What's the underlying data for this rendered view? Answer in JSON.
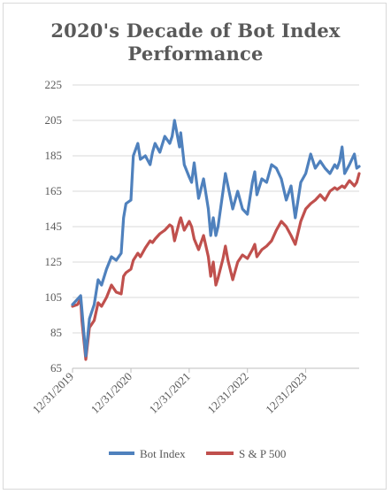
{
  "chart_data": {
    "type": "line",
    "title_lines": [
      "2020's Decade of Bot Index",
      "Performance"
    ],
    "ylim": [
      65,
      225
    ],
    "yticks": [
      65,
      85,
      105,
      125,
      145,
      165,
      185,
      205,
      225
    ],
    "xlim": [
      "2019-12-31",
      "2024-11-30"
    ],
    "xticks": [
      "12/31/2019",
      "12/31/2020",
      "12/31/2021",
      "12/31/2022",
      "12/31/2023"
    ],
    "grid": true,
    "legend": "bottom",
    "colors": {
      "Bot Index": "#4f81bd",
      "S & P 500": "#c0504d"
    },
    "series": [
      {
        "name": "Bot Index",
        "x": [
          "2019-12-31",
          "2020-01-31",
          "2020-02-20",
          "2020-02-28",
          "2020-03-23",
          "2020-04-15",
          "2020-05-15",
          "2020-06-08",
          "2020-06-30",
          "2020-07-31",
          "2020-08-31",
          "2020-09-30",
          "2020-10-31",
          "2020-11-15",
          "2020-11-30",
          "2020-12-31",
          "2021-01-15",
          "2021-02-12",
          "2021-02-28",
          "2021-03-31",
          "2021-04-30",
          "2021-05-15",
          "2021-05-31",
          "2021-06-30",
          "2021-07-31",
          "2021-08-31",
          "2021-09-15",
          "2021-09-30",
          "2021-10-31",
          "2021-11-08",
          "2021-11-30",
          "2021-12-31",
          "2022-01-15",
          "2022-01-31",
          "2022-02-28",
          "2022-03-31",
          "2022-04-30",
          "2022-05-15",
          "2022-05-31",
          "2022-06-16",
          "2022-06-30",
          "2022-07-31",
          "2022-08-15",
          "2022-08-31",
          "2022-09-30",
          "2022-10-31",
          "2022-11-30",
          "2022-12-31",
          "2023-01-31",
          "2023-02-15",
          "2023-02-28",
          "2023-03-31",
          "2023-04-30",
          "2023-05-31",
          "2023-06-30",
          "2023-07-31",
          "2023-08-31",
          "2023-09-30",
          "2023-10-27",
          "2023-11-30",
          "2023-12-31",
          "2024-01-31",
          "2024-02-29",
          "2024-03-31",
          "2024-04-30",
          "2024-05-31",
          "2024-06-30",
          "2024-07-15",
          "2024-07-31",
          "2024-08-15",
          "2024-08-31",
          "2024-09-30",
          "2024-10-31",
          "2024-11-15",
          "2024-11-30"
        ],
        "values": [
          101,
          104,
          106,
          98,
          72,
          93,
          101,
          115,
          112,
          121,
          128,
          126,
          130,
          150,
          158,
          160,
          185,
          192,
          183,
          185,
          180,
          187,
          192,
          187,
          196,
          192,
          196,
          205,
          190,
          198,
          180,
          173,
          170,
          181,
          161,
          172,
          155,
          140,
          150,
          140,
          145,
          165,
          175,
          168,
          155,
          165,
          155,
          152,
          170,
          176,
          163,
          172,
          170,
          180,
          178,
          172,
          160,
          168,
          150,
          170,
          175,
          186,
          178,
          182,
          178,
          175,
          180,
          178,
          182,
          190,
          175,
          180,
          186,
          178,
          179
        ]
      },
      {
        "name": "S & P 500",
        "x": [
          "2019-12-31",
          "2020-01-31",
          "2020-02-20",
          "2020-02-28",
          "2020-03-23",
          "2020-04-15",
          "2020-05-15",
          "2020-06-08",
          "2020-06-30",
          "2020-07-31",
          "2020-08-31",
          "2020-09-30",
          "2020-10-31",
          "2020-11-15",
          "2020-11-30",
          "2020-12-31",
          "2021-01-15",
          "2021-02-12",
          "2021-02-28",
          "2021-03-31",
          "2021-04-30",
          "2021-05-15",
          "2021-05-31",
          "2021-06-30",
          "2021-07-31",
          "2021-08-31",
          "2021-09-15",
          "2021-09-30",
          "2021-10-31",
          "2021-11-08",
          "2021-11-30",
          "2021-12-31",
          "2022-01-15",
          "2022-01-31",
          "2022-02-28",
          "2022-03-31",
          "2022-04-30",
          "2022-05-15",
          "2022-05-31",
          "2022-06-16",
          "2022-06-30",
          "2022-07-31",
          "2022-08-15",
          "2022-08-31",
          "2022-09-30",
          "2022-10-31",
          "2022-11-30",
          "2022-12-31",
          "2023-01-31",
          "2023-02-15",
          "2023-02-28",
          "2023-03-31",
          "2023-04-30",
          "2023-05-31",
          "2023-06-30",
          "2023-07-31",
          "2023-08-31",
          "2023-09-30",
          "2023-10-27",
          "2023-11-30",
          "2023-12-31",
          "2024-01-31",
          "2024-02-29",
          "2024-03-31",
          "2024-04-30",
          "2024-05-31",
          "2024-06-30",
          "2024-07-15",
          "2024-07-31",
          "2024-08-15",
          "2024-08-31",
          "2024-09-30",
          "2024-10-31",
          "2024-11-15",
          "2024-11-30"
        ],
        "values": [
          100,
          101,
          104,
          92,
          70,
          88,
          92,
          102,
          100,
          105,
          112,
          108,
          107,
          117,
          119,
          121,
          126,
          130,
          128,
          133,
          137,
          136,
          138,
          141,
          143,
          146,
          145,
          137,
          148,
          150,
          143,
          148,
          145,
          138,
          132,
          140,
          128,
          117,
          125,
          112,
          116,
          127,
          134,
          126,
          115,
          125,
          129,
          127,
          132,
          135,
          128,
          132,
          134,
          137,
          143,
          148,
          145,
          140,
          135,
          148,
          155,
          158,
          160,
          163,
          160,
          165,
          167,
          166,
          167,
          168,
          167,
          171,
          168,
          170,
          175
        ]
      }
    ]
  },
  "legend": {
    "items": [
      {
        "label": "Bot Index"
      },
      {
        "label": "S & P 500"
      }
    ]
  }
}
